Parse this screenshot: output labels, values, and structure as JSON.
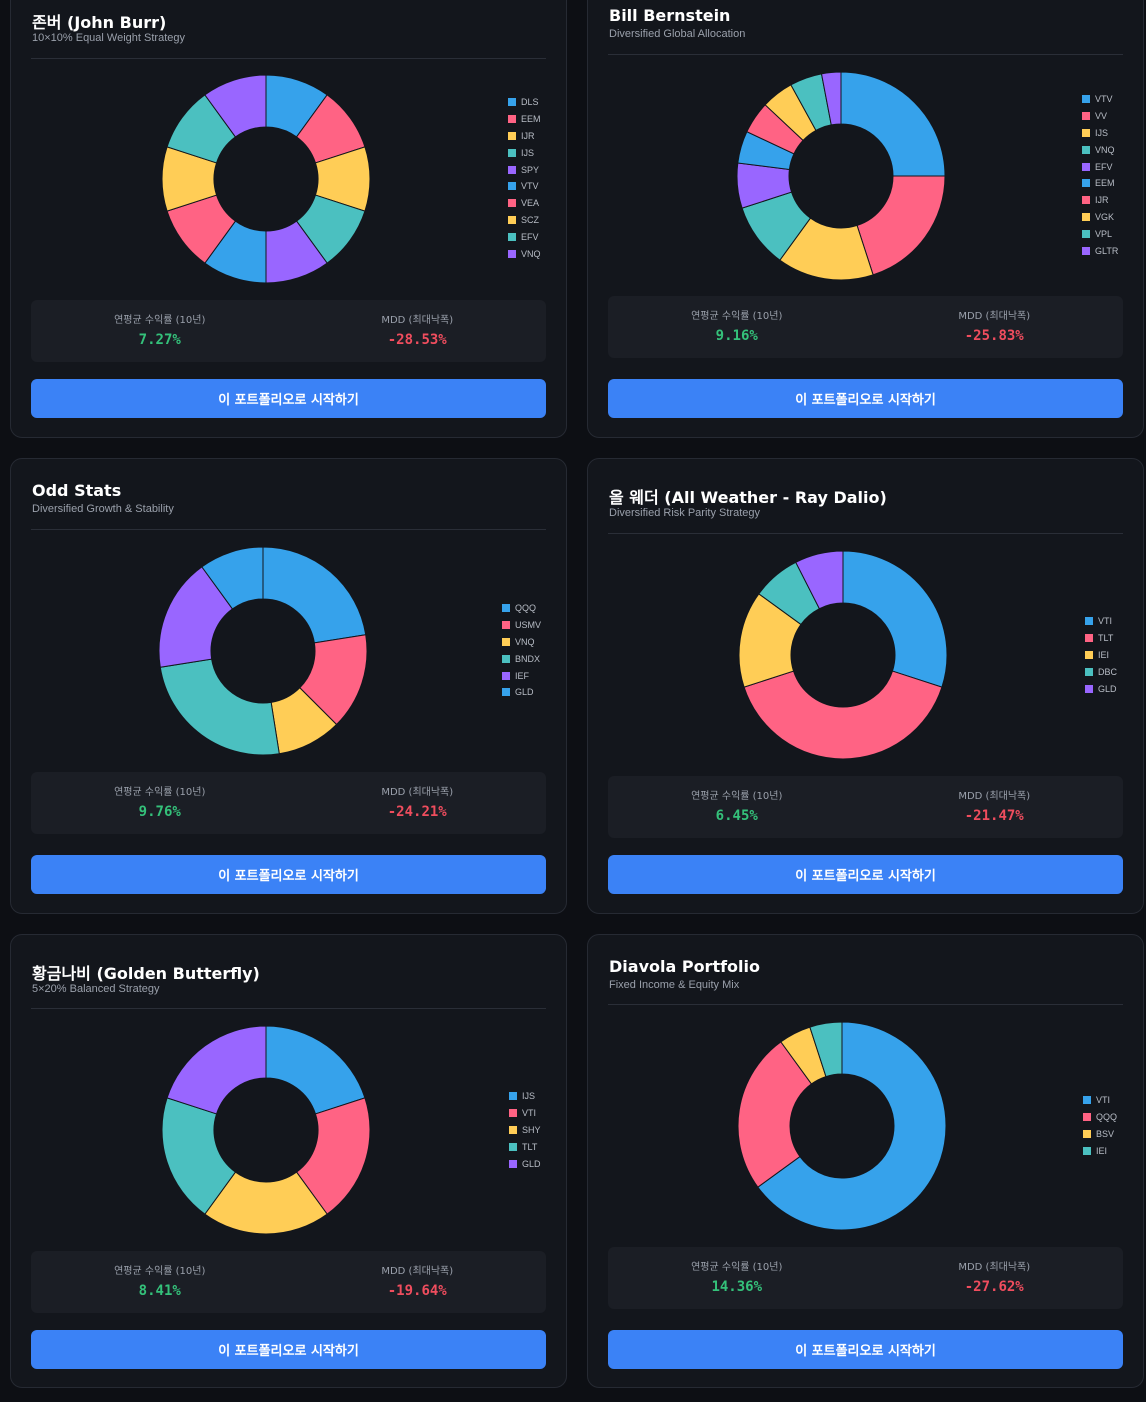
{
  "colors": {
    "blue": "#36a2eb",
    "red": "#ff6384",
    "yellow": "#ffcd56",
    "teal": "#4bc0c0",
    "purple": "#9966ff",
    "positive": "#34c17a",
    "negative": "#f04d5e",
    "button": "#3b82f6"
  },
  "labels": {
    "cagr": "연평균 수익률 (10년)",
    "mdd": "MDD (최대낙폭)",
    "start_button": "이 포트폴리오로 시작하기"
  },
  "portfolios": [
    {
      "title": "존버 (John Burr)",
      "subtitle": "10×10% Equal Weight Strategy",
      "cagr": "7.27%",
      "mdd": "-28.53%",
      "chart_data": {
        "type": "pie",
        "donut": true,
        "labels": [
          "DLS",
          "EEM",
          "IJR",
          "IJS",
          "SPY",
          "VTV",
          "VEA",
          "SCZ",
          "EFV",
          "VNQ"
        ],
        "values": [
          10,
          10,
          10,
          10,
          10,
          10,
          10,
          10,
          10,
          10
        ],
        "colors": [
          "#36a2eb",
          "#ff6384",
          "#ffcd56",
          "#4bc0c0",
          "#9966ff",
          "#36a2eb",
          "#ff6384",
          "#ffcd56",
          "#4bc0c0",
          "#9966ff"
        ],
        "legend_position": "right"
      }
    },
    {
      "title": "Bill Bernstein",
      "subtitle": "Diversified Global Allocation",
      "cagr": "9.16%",
      "mdd": "-25.83%",
      "chart_data": {
        "type": "pie",
        "donut": true,
        "labels": [
          "VTV",
          "VV",
          "IJS",
          "VNQ",
          "EFV",
          "EEM",
          "IJR",
          "VGK",
          "VPL",
          "GLTR"
        ],
        "values": [
          25,
          20,
          15,
          10,
          7,
          5,
          5,
          5,
          5,
          3
        ],
        "colors": [
          "#36a2eb",
          "#ff6384",
          "#ffcd56",
          "#4bc0c0",
          "#9966ff",
          "#36a2eb",
          "#ff6384",
          "#ffcd56",
          "#4bc0c0",
          "#9966ff"
        ],
        "legend_position": "right"
      }
    },
    {
      "title": "Odd Stats",
      "subtitle": "Diversified Growth & Stability",
      "cagr": "9.76%",
      "mdd": "-24.21%",
      "chart_data": {
        "type": "pie",
        "donut": true,
        "labels": [
          "QQQ",
          "USMV",
          "VNQ",
          "BNDX",
          "IEF",
          "GLD"
        ],
        "values": [
          22.5,
          15,
          10,
          25,
          17.5,
          10
        ],
        "colors": [
          "#36a2eb",
          "#ff6384",
          "#ffcd56",
          "#4bc0c0",
          "#9966ff",
          "#36a2eb"
        ],
        "legend_position": "right"
      }
    },
    {
      "title": "올 웨더 (All Weather - Ray Dalio)",
      "subtitle": "Diversified Risk Parity Strategy",
      "cagr": "6.45%",
      "mdd": "-21.47%",
      "chart_data": {
        "type": "pie",
        "donut": true,
        "labels": [
          "VTI",
          "TLT",
          "IEI",
          "DBC",
          "GLD"
        ],
        "values": [
          30,
          40,
          15,
          7.5,
          7.5
        ],
        "colors": [
          "#36a2eb",
          "#ff6384",
          "#ffcd56",
          "#4bc0c0",
          "#9966ff"
        ],
        "legend_position": "right"
      }
    },
    {
      "title": "황금나비 (Golden Butterfly)",
      "subtitle": "5×20% Balanced Strategy",
      "cagr": "8.41%",
      "mdd": "-19.64%",
      "chart_data": {
        "type": "pie",
        "donut": true,
        "labels": [
          "IJS",
          "VTI",
          "SHY",
          "TLT",
          "GLD"
        ],
        "values": [
          20,
          20,
          20,
          20,
          20
        ],
        "colors": [
          "#36a2eb",
          "#ff6384",
          "#ffcd56",
          "#4bc0c0",
          "#9966ff"
        ],
        "legend_position": "right"
      }
    },
    {
      "title": "Diavola Portfolio",
      "subtitle": "Fixed Income & Equity Mix",
      "cagr": "14.36%",
      "mdd": "-27.62%",
      "chart_data": {
        "type": "pie",
        "donut": true,
        "labels": [
          "VTI",
          "QQQ",
          "BSV",
          "IEI"
        ],
        "values": [
          65,
          25,
          5,
          5
        ],
        "colors": [
          "#36a2eb",
          "#ff6384",
          "#ffcd56",
          "#4bc0c0"
        ],
        "legend_position": "right"
      }
    }
  ]
}
